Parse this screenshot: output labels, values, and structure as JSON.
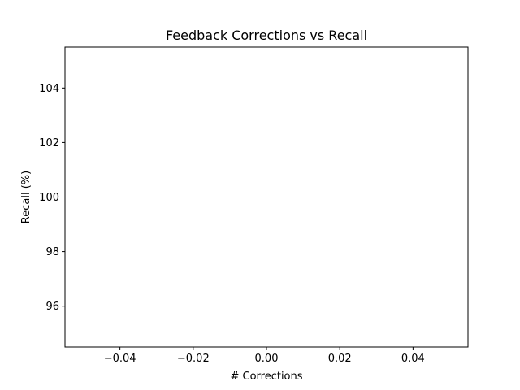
{
  "chart_data": {
    "type": "scatter",
    "title": "Feedback Corrections vs Recall",
    "xlabel": "# Corrections",
    "ylabel": "Recall (%)",
    "x": [],
    "y": [],
    "xlim": [
      -0.055,
      0.055
    ],
    "ylim": [
      94.5,
      105.5
    ],
    "xticks": [
      -0.04,
      -0.02,
      0.0,
      0.02,
      0.04
    ],
    "xtick_labels": [
      "−0.04",
      "−0.02",
      "0.00",
      "0.02",
      "0.04"
    ],
    "yticks": [
      96,
      98,
      100,
      102,
      104
    ],
    "ytick_labels": [
      "96",
      "98",
      "100",
      "102",
      "104"
    ],
    "grid": false,
    "legend": "none"
  }
}
